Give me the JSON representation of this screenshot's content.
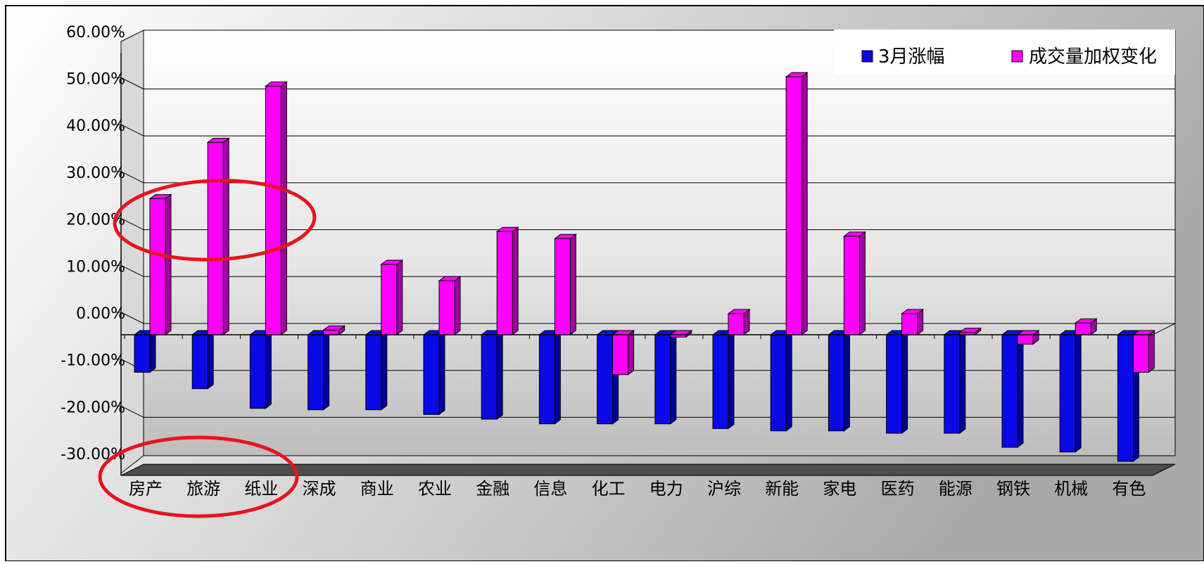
{
  "chart_data": {
    "type": "bar",
    "categories": [
      "房产",
      "旅游",
      "纸业",
      "深成",
      "商业",
      "农业",
      "金融",
      "信息",
      "化工",
      "电力",
      "沪综",
      "新能",
      "家电",
      "医药",
      "能源",
      "钢铁",
      "机械",
      "有色"
    ],
    "series": [
      {
        "name": "3月涨幅",
        "values": [
          -0.08,
          -0.115,
          -0.157,
          -0.16,
          -0.16,
          -0.17,
          -0.18,
          -0.19,
          -0.19,
          -0.19,
          -0.2,
          -0.205,
          -0.205,
          -0.21,
          -0.21,
          -0.24,
          -0.25,
          -0.27
        ]
      },
      {
        "name": "成交量加权变化",
        "values": [
          0.29,
          0.41,
          0.53,
          0.01,
          0.15,
          0.115,
          0.22,
          0.205,
          -0.085,
          -0.005,
          0.045,
          0.55,
          0.21,
          0.045,
          0.005,
          -0.02,
          0.025,
          -0.08
        ]
      }
    ],
    "yticks": [
      "60.00%",
      "50.00%",
      "40.00%",
      "30.00%",
      "20.00%",
      "10.00%",
      "0.00%",
      "-10.00%",
      "-20.00%",
      "-30.00%"
    ],
    "ylim": [
      -0.3,
      0.6
    ],
    "grid": true,
    "legend_position": "top-right",
    "colors": {
      "series1": "#0a0ae6",
      "series1_side": "#00009a",
      "series2": "#ff00ff",
      "series2_side": "#a300a3",
      "annotation": "#e8141b"
    }
  }
}
